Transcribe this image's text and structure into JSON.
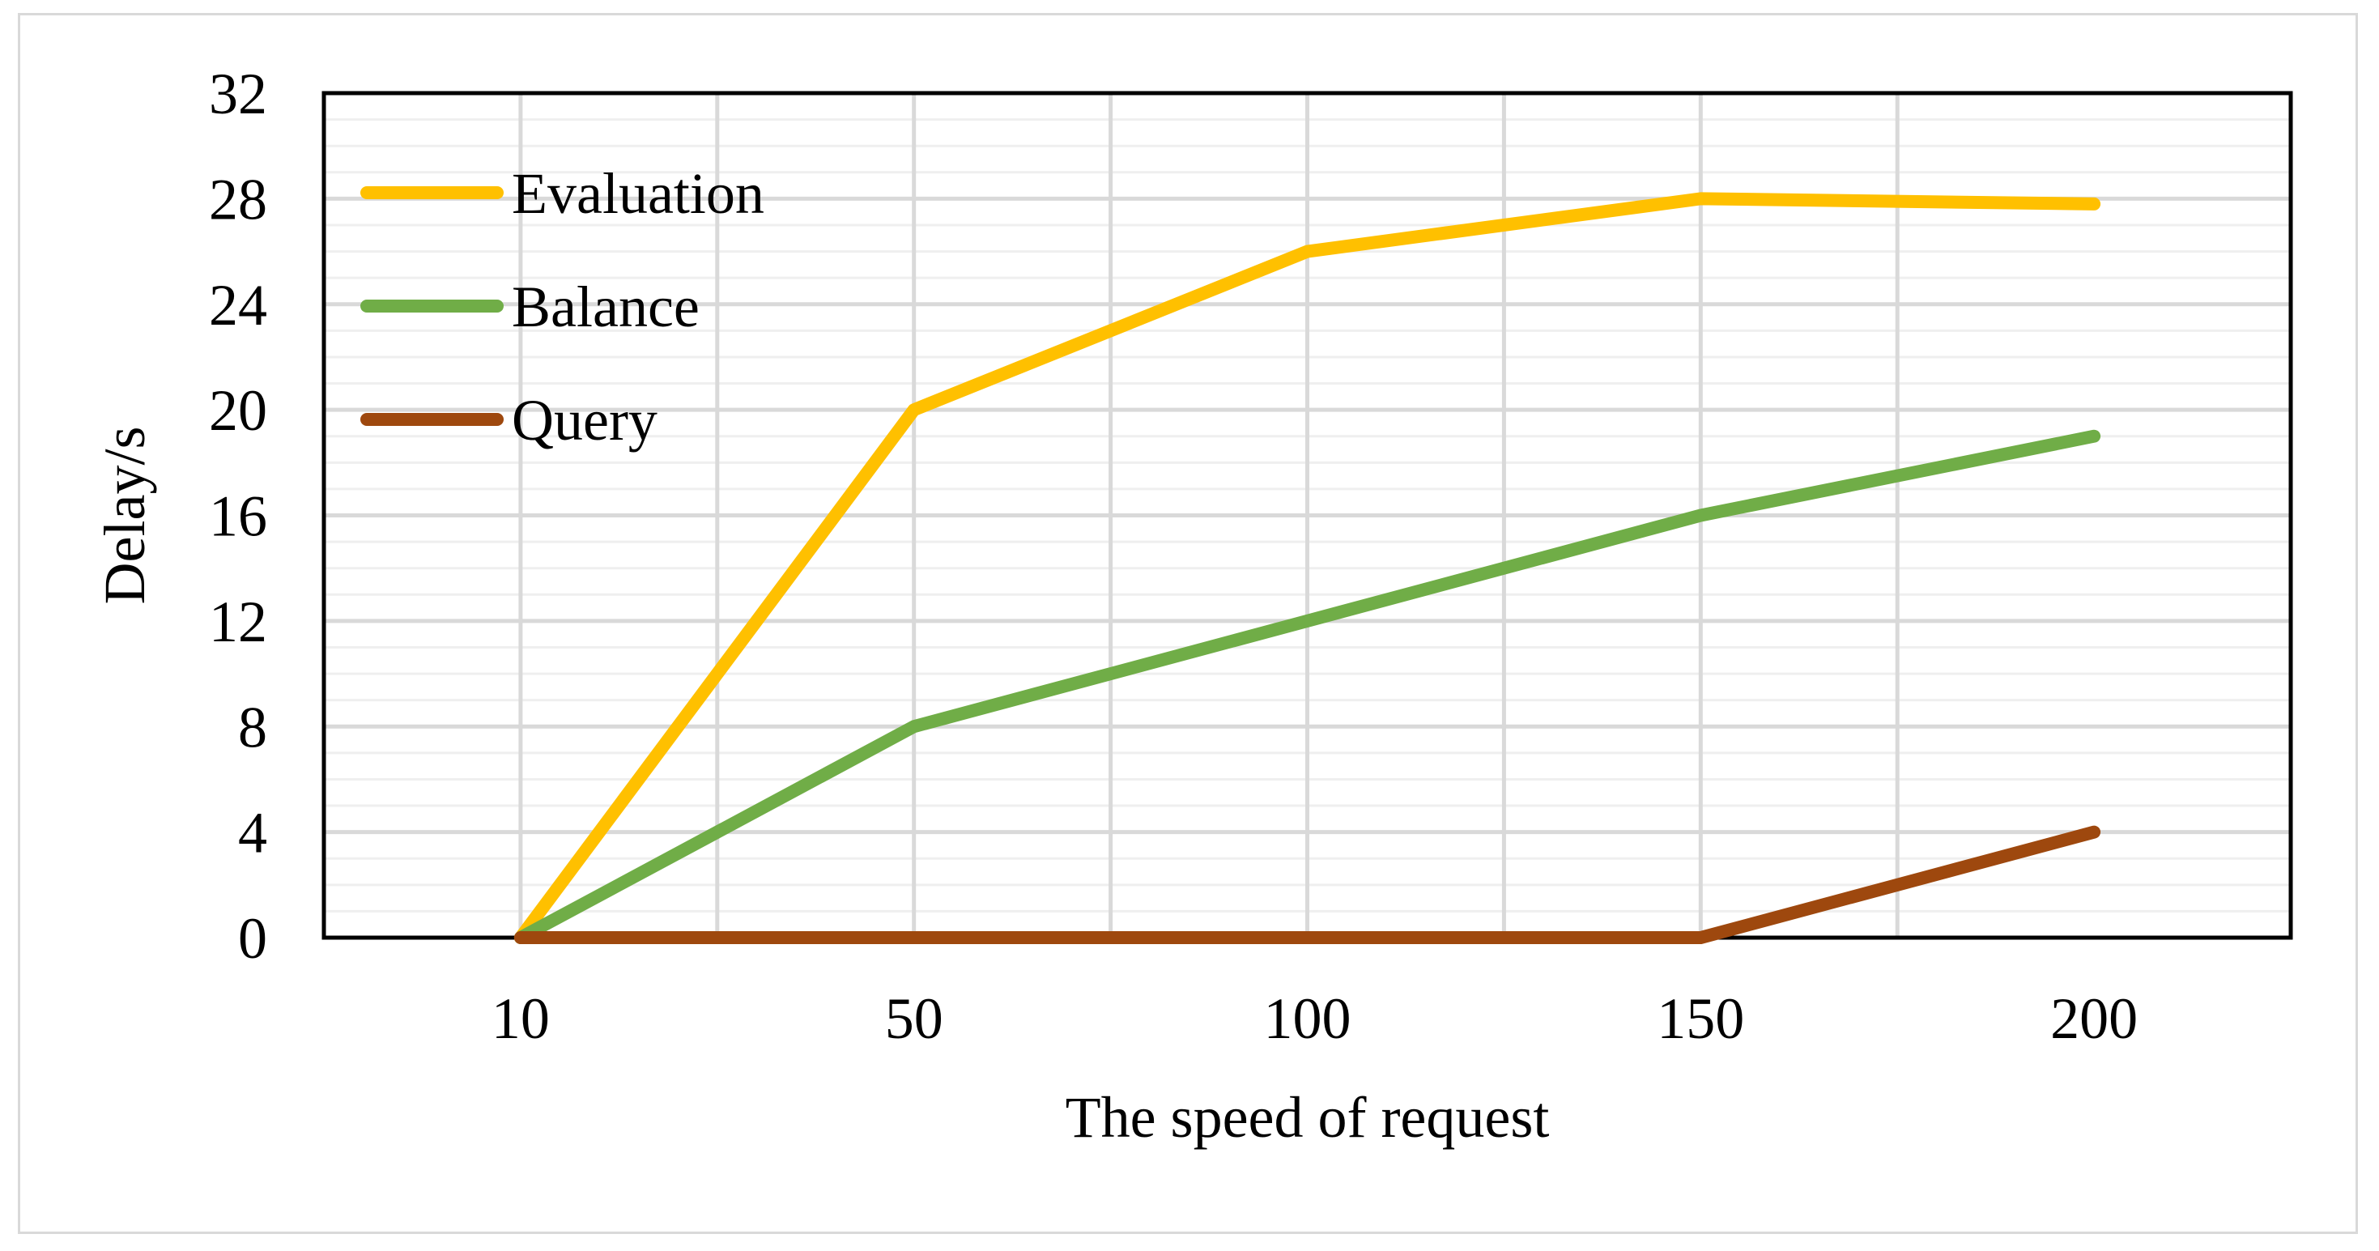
{
  "chart_data": {
    "type": "line",
    "title": "",
    "xlabel": "The speed of request",
    "ylabel": "Delay/s",
    "categories": [
      "10",
      "50",
      "100",
      "150",
      "200"
    ],
    "ylim": [
      0,
      32
    ],
    "yticks": [
      0,
      4,
      8,
      12,
      16,
      20,
      24,
      28,
      32
    ],
    "grid": true,
    "legend_position": "top-left",
    "series": [
      {
        "name": "Evaluation",
        "color": "#FFC000",
        "values": [
          0,
          20,
          26,
          28,
          27.8
        ]
      },
      {
        "name": "Balance",
        "color": "#70AD47",
        "values": [
          0,
          8,
          12,
          16,
          19
        ]
      },
      {
        "name": "Query",
        "color": "#9E480E",
        "values": [
          0,
          0,
          0,
          0,
          4
        ]
      }
    ]
  }
}
